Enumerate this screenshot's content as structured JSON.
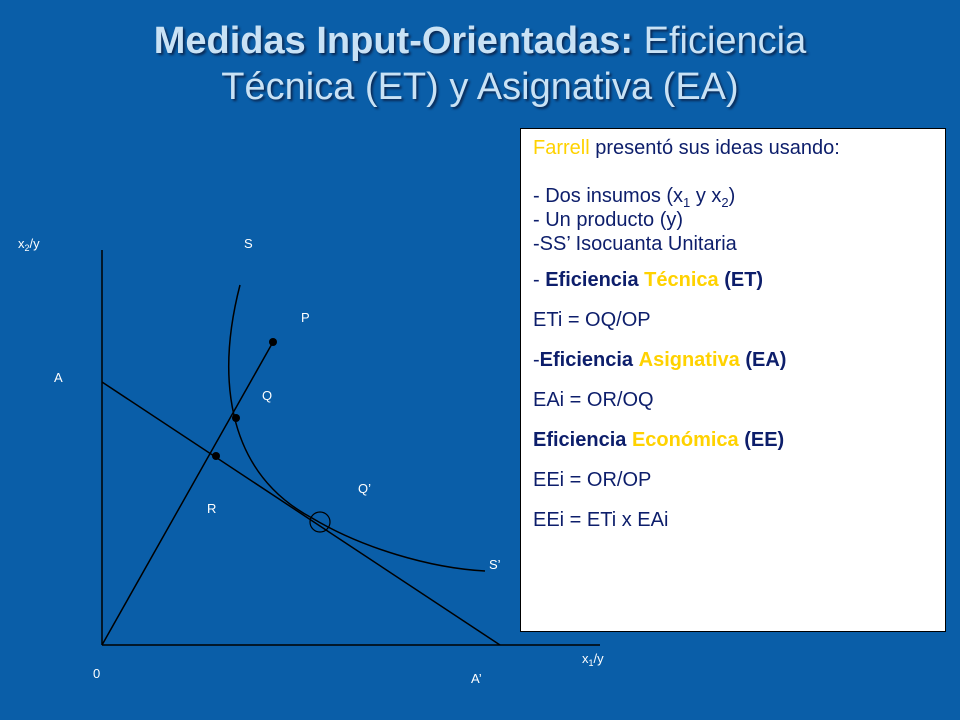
{
  "title": {
    "bold": "Medidas Input-Orientadas:",
    "rest_line1": "Eficiencia",
    "line2": "Técnica (ET) y Asignativa (EA)"
  },
  "diagram": {
    "y_axis": {
      "base": "x",
      "sub": "2",
      "tail": "/y"
    },
    "x_axis": {
      "base": "x",
      "sub": "1",
      "tail": "/y"
    },
    "labels": {
      "origin": "0",
      "S": "S",
      "S_prime": "S’",
      "P": "P",
      "Q": "Q",
      "R": "R",
      "Q_prime": "Q’",
      "A": "A",
      "A_prime": "A’"
    }
  },
  "note": {
    "intro_name": "Farrell",
    "intro_rest": "presentó sus ideas usando:",
    "item1_a": "- Dos insumos (x",
    "item1_sub1": "1",
    "item1_b": "y x",
    "item1_sub2": "2",
    "item1_c": ")",
    "item2": "- Un producto (y)",
    "item3": "-SS’ Isocuanta Unitaria",
    "et_prefix": "- ",
    "et_word1": "Eficiencia",
    "et_word2": "Técnica",
    "et_tail": "(ET)",
    "et_formula": "ETi = OQ/OP",
    "ea_prefix": "-",
    "ea_word1": "Eficiencia",
    "ea_word2": "Asignativa",
    "ea_tail": "(EA)",
    "ea_formula": "EAi = OR/OQ",
    "ee_word1": "Eficiencia",
    "ee_word2": "Económica",
    "ee_tail": "(EE)",
    "ee_formula": "EEi = OR/OP",
    "ee_product": "EEi = ETi x EAi"
  },
  "colors": {
    "background": "#0a5ea8",
    "title": "#c9e2f5",
    "note_text": "#0d1e6b",
    "highlight": "#ffd200",
    "lines": "#000000"
  }
}
